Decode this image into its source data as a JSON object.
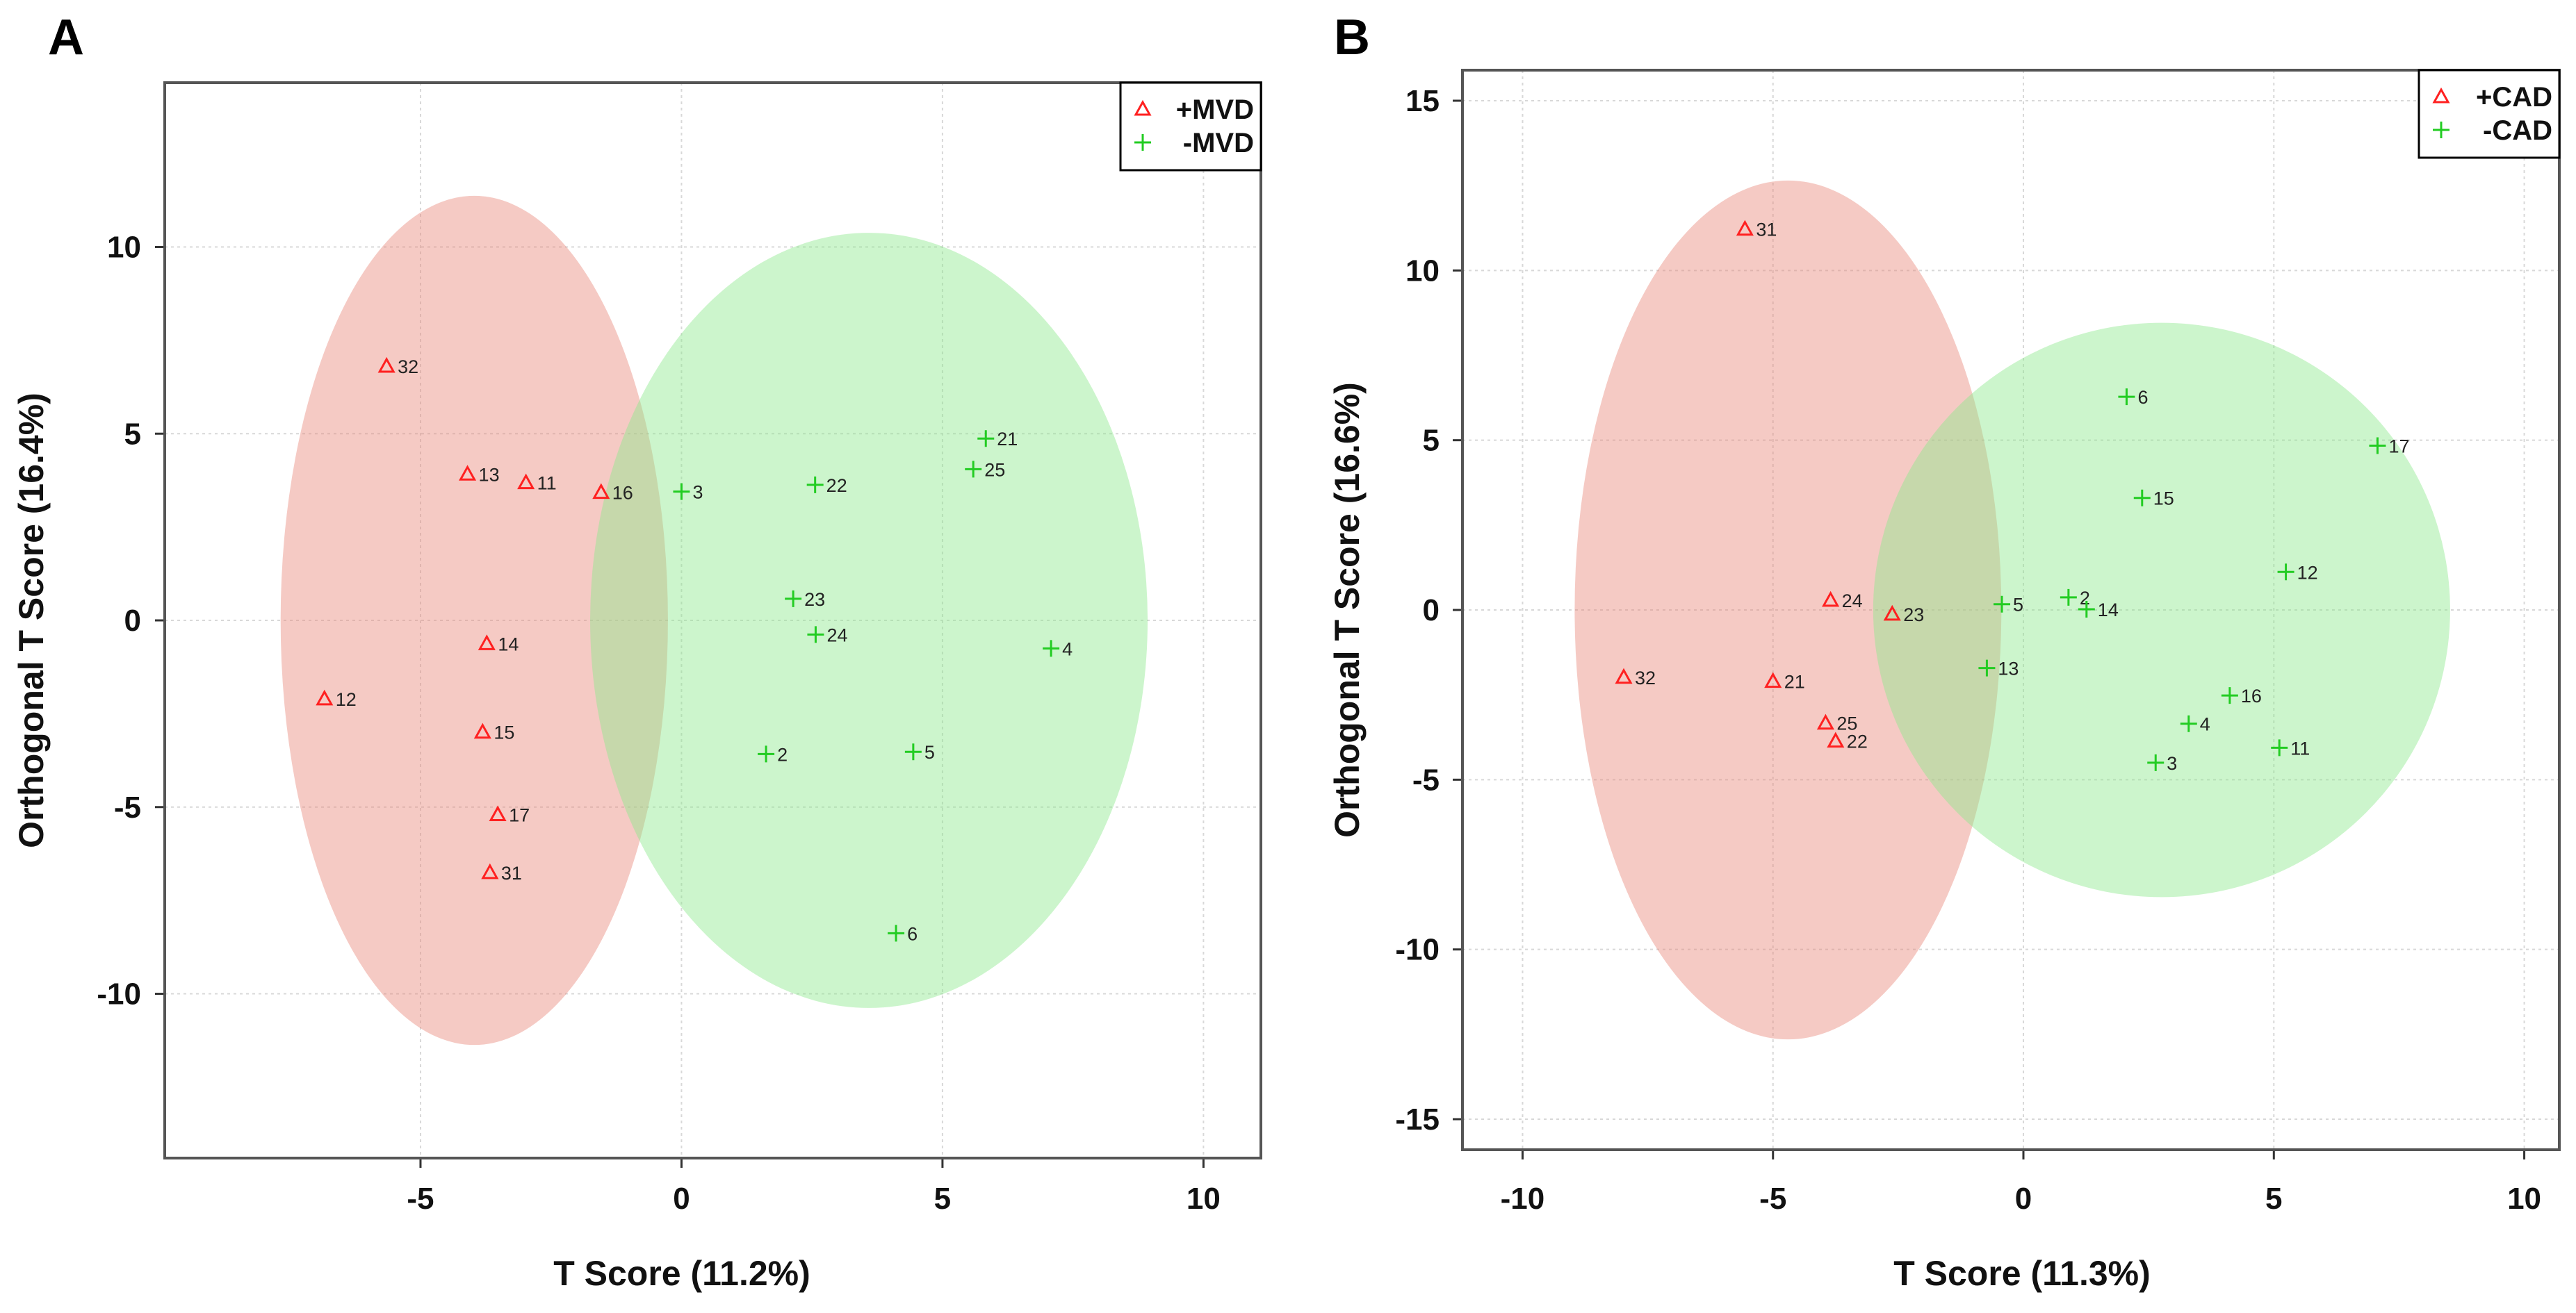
{
  "chart_data": [
    {
      "type": "scatter",
      "panel_label": "A",
      "xlabel": "T Score (11.2%)",
      "ylabel": "Orthogonal T Score (16.4%)",
      "xlim": [
        -9.9,
        11.1
      ],
      "ylim": [
        -14.4,
        14.4
      ],
      "xticks": [
        -5,
        0,
        5,
        10
      ],
      "yticks": [
        -10,
        -5,
        0,
        5,
        10
      ],
      "grid": true,
      "legend_position": "top-right",
      "series": [
        {
          "name": "+MVD",
          "marker": "triangle",
          "color": "#ff2020",
          "ellipse": {
            "cx": -3.97,
            "cy": 0,
            "rx": 3.71,
            "ry": 11.37,
            "fill": "#e88a7c"
          },
          "points": [
            {
              "label": "32",
              "x": -5.65,
              "y": 6.81
            },
            {
              "label": "13",
              "x": -4.1,
              "y": 3.92
            },
            {
              "label": "11",
              "x": -2.98,
              "y": 3.69
            },
            {
              "label": "16",
              "x": -1.54,
              "y": 3.43
            },
            {
              "label": "14",
              "x": -3.73,
              "y": -0.62
            },
            {
              "label": "12",
              "x": -6.84,
              "y": -2.1
            },
            {
              "label": "15",
              "x": -3.81,
              "y": -2.99
            },
            {
              "label": "17",
              "x": -3.52,
              "y": -5.2
            },
            {
              "label": "31",
              "x": -3.67,
              "y": -6.75
            }
          ]
        },
        {
          "name": "-MVD",
          "marker": "plus",
          "color": "#22cc22",
          "ellipse": {
            "cx": 3.59,
            "cy": 0,
            "rx": 5.34,
            "ry": 10.38,
            "fill": "#8fe88f"
          },
          "points": [
            {
              "label": "3",
              "x": 0.0,
              "y": 3.45
            },
            {
              "label": "22",
              "x": 2.56,
              "y": 3.63
            },
            {
              "label": "21",
              "x": 5.83,
              "y": 4.87
            },
            {
              "label": "25",
              "x": 5.59,
              "y": 4.05
            },
            {
              "label": "23",
              "x": 2.14,
              "y": 0.58
            },
            {
              "label": "24",
              "x": 2.57,
              "y": -0.38
            },
            {
              "label": "4",
              "x": 7.08,
              "y": -0.75
            },
            {
              "label": "2",
              "x": 1.62,
              "y": -3.58
            },
            {
              "label": "5",
              "x": 4.44,
              "y": -3.52
            },
            {
              "label": "6",
              "x": 4.11,
              "y": -8.38
            }
          ]
        }
      ]
    },
    {
      "type": "scatter",
      "panel_label": "B",
      "xlabel": "T Score (11.3%)",
      "ylabel": "Orthogonal T Score (16.6%)",
      "xlim": [
        -11.2,
        10.7
      ],
      "ylim": [
        -15.9,
        15.9
      ],
      "xticks": [
        -10,
        -5,
        0,
        5,
        10
      ],
      "yticks": [
        -15,
        -10,
        -5,
        0,
        5,
        10,
        15
      ],
      "grid": true,
      "legend_position": "top-right",
      "series": [
        {
          "name": "+CAD",
          "marker": "triangle",
          "color": "#ff2020",
          "ellipse": {
            "cx": -4.7,
            "cy": 0,
            "rx": 4.26,
            "ry": 12.65,
            "fill": "#e88a7c"
          },
          "points": [
            {
              "label": "31",
              "x": -5.56,
              "y": 11.22
            },
            {
              "label": "24",
              "x": -3.85,
              "y": 0.29
            },
            {
              "label": "23",
              "x": -2.62,
              "y": -0.12
            },
            {
              "label": "32",
              "x": -7.98,
              "y": -1.98
            },
            {
              "label": "21",
              "x": -5.0,
              "y": -2.1
            },
            {
              "label": "25",
              "x": -3.95,
              "y": -3.33
            },
            {
              "label": "22",
              "x": -3.75,
              "y": -3.86
            }
          ]
        },
        {
          "name": "-CAD",
          "marker": "plus",
          "color": "#22cc22",
          "ellipse": {
            "cx": 2.76,
            "cy": 0,
            "rx": 5.76,
            "ry": 8.46,
            "fill": "#8fe88f"
          },
          "points": [
            {
              "label": "6",
              "x": 2.06,
              "y": 6.28
            },
            {
              "label": "17",
              "x": 7.07,
              "y": 4.84
            },
            {
              "label": "15",
              "x": 2.37,
              "y": 3.3
            },
            {
              "label": "12",
              "x": 5.24,
              "y": 1.12
            },
            {
              "label": "5",
              "x": -0.43,
              "y": 0.17
            },
            {
              "label": "2",
              "x": 0.9,
              "y": 0.37
            },
            {
              "label": "14",
              "x": 1.26,
              "y": 0.02
            },
            {
              "label": "13",
              "x": -0.73,
              "y": -1.71
            },
            {
              "label": "16",
              "x": 4.12,
              "y": -2.52
            },
            {
              "label": "4",
              "x": 3.3,
              "y": -3.35
            },
            {
              "label": "11",
              "x": 5.11,
              "y": -4.06
            },
            {
              "label": "3",
              "x": 2.64,
              "y": -4.5
            }
          ]
        }
      ]
    }
  ]
}
